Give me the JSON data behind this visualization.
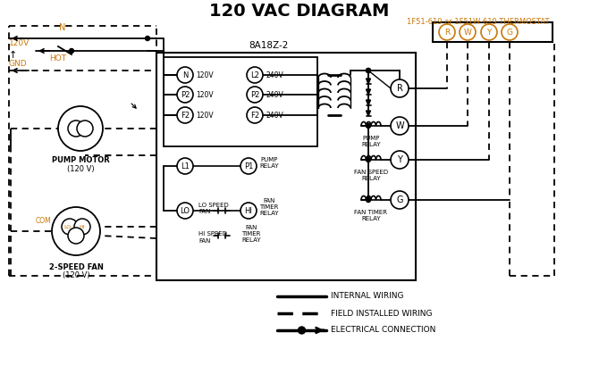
{
  "title": "120 VAC DIAGRAM",
  "bg_color": "#ffffff",
  "black": "#000000",
  "orange": "#c8780a",
  "thermostat_label": "1F51-619 or 1F51W-619 THERMOSTAT",
  "box_label": "8A18Z-2",
  "legend_items": [
    {
      "label": "INTERNAL WIRING",
      "style": "solid"
    },
    {
      "label": "FIELD INSTALLED WIRING",
      "style": "dashed"
    },
    {
      "label": "ELECTRICAL CONNECTION",
      "style": "solid_dot_arrow"
    }
  ],
  "left_120_labels": [
    [
      "N",
      "120V"
    ],
    [
      "P2",
      "120V"
    ],
    [
      "F2",
      "120V"
    ]
  ],
  "right_240_labels": [
    [
      "L2",
      "240V"
    ],
    [
      "P2",
      "240V"
    ],
    [
      "F2",
      "240V"
    ]
  ],
  "therm_terminals": [
    "R",
    "W",
    "Y",
    "G"
  ]
}
